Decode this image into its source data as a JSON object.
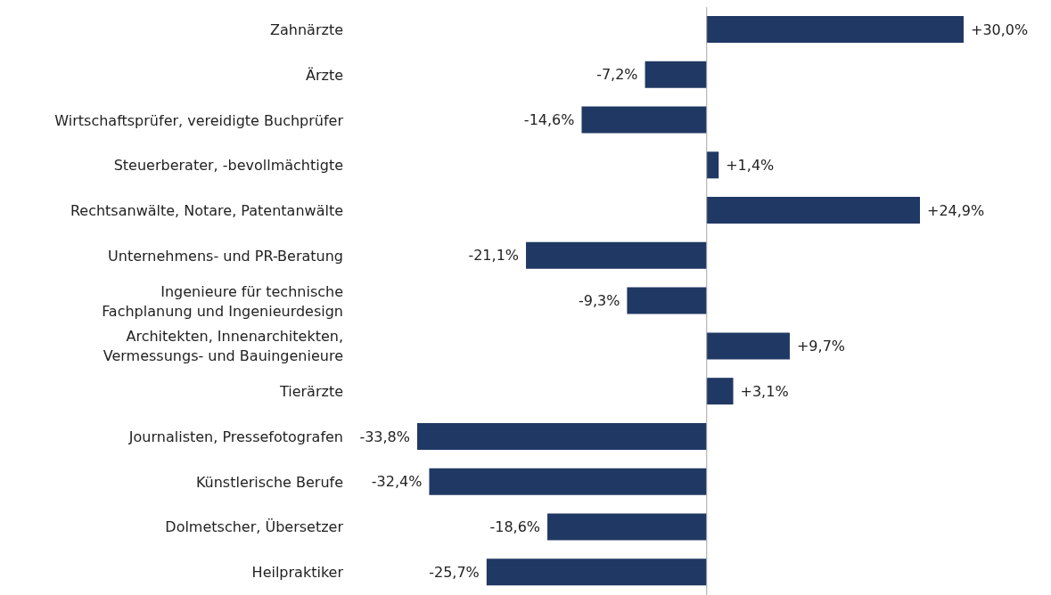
{
  "chart_data": {
    "type": "bar",
    "orientation": "horizontal",
    "categories": [
      "Zahnärzte",
      "Ärzte",
      "Wirtschaftsprüfer, vereidigte Buchprüfer",
      "Steuerberater, -bevollmächtigte",
      "Rechtsanwälte, Notare, Patentanwälte",
      "Unternehmens- und PR-Beratung",
      "Ingenieure für technische\nFachplanung und Ingenieurdesign",
      "Architekten, Innenarchitekten,\nVermessungs- und Bauingenieure",
      "Tierärzte",
      "Journalisten, Pressefotografen",
      "Künstlerische Berufe",
      "Dolmetscher, Übersetzer",
      "Heilpraktiker"
    ],
    "values": [
      30.0,
      -7.2,
      -14.6,
      1.4,
      24.9,
      -21.1,
      -9.3,
      9.7,
      3.1,
      -33.8,
      -32.4,
      -18.6,
      -25.7
    ],
    "value_labels": [
      "+30,0%",
      "-7,2%",
      "-14,6%",
      "+1,4%",
      "+24,9%",
      "-21,1%",
      "-9,3%",
      "+9,7%",
      "+3,1%",
      "-33,8%",
      "-32,4%",
      "-18,6%",
      "-25,7%"
    ],
    "color": "#203864",
    "ref_lines": [
      {
        "axis": "x",
        "value": 0,
        "color": "#a6a6a6"
      }
    ],
    "grid": false,
    "legend": false
  }
}
